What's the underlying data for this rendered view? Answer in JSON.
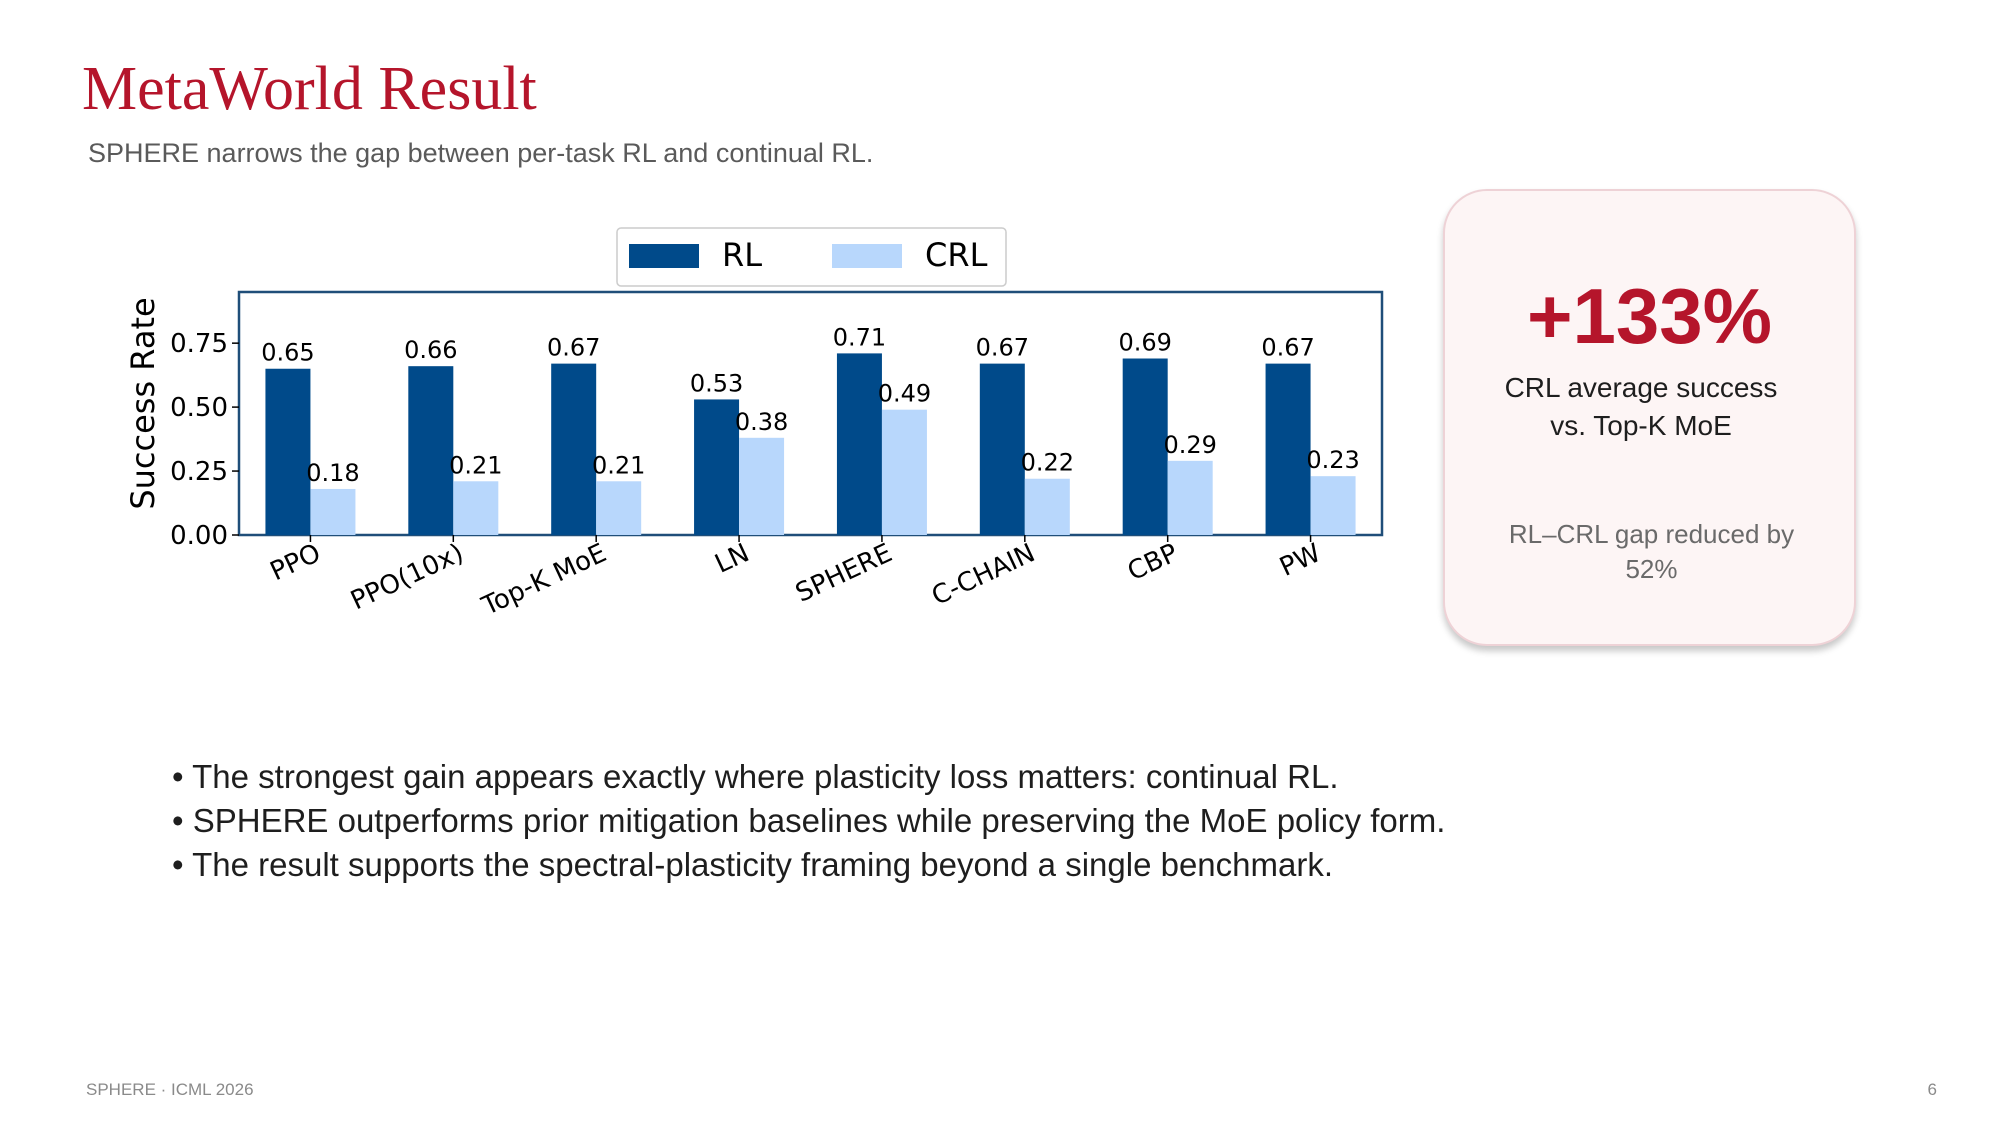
{
  "slide": {
    "title": "MetaWorld Result",
    "subtitle": "SPHERE narrows the gap between per-task RL and continual RL.",
    "footer": "SPHERE · ICML 2026",
    "page_number": "6"
  },
  "card": {
    "metric": "+133%",
    "caption": "CRL average success vs. Top-K MoE",
    "note": "RL–CRL gap reduced by 52%"
  },
  "bullets": [
    "• The strongest gain appears exactly where plasticity loss matters: continual RL.",
    "• SPHERE outperforms prior mitigation baselines while preserving the MoE policy form.",
    "• The result supports the spectral-plasticity framing beyond a single benchmark."
  ],
  "colors": {
    "title": "#b5152b",
    "rl": "#004a8a",
    "crl": "#b8d7fc",
    "axes": "#1f4e79"
  },
  "chart_data": {
    "type": "bar",
    "categories": [
      "PPO",
      "PPO(10x)",
      "Top-K MoE",
      "LN",
      "SPHERE",
      "C-CHAIN",
      "CBP",
      "PW"
    ],
    "series": [
      {
        "name": "RL",
        "values": [
          0.65,
          0.66,
          0.67,
          0.53,
          0.71,
          0.67,
          0.69,
          0.67
        ],
        "labels": [
          "0.65",
          "0.66",
          "0.67",
          "0.53",
          "0.71",
          "0.67",
          "0.69",
          "0.67"
        ]
      },
      {
        "name": "CRL",
        "values": [
          0.18,
          0.21,
          0.21,
          0.38,
          0.49,
          0.22,
          0.29,
          0.23
        ],
        "labels": [
          "0.18",
          "0.21",
          "0.21",
          "0.38",
          "0.49",
          "0.22",
          "0.29",
          "0.23"
        ]
      }
    ],
    "title": "",
    "xlabel": "",
    "ylabel": "Success Rate",
    "ylim": [
      0,
      0.95
    ],
    "yticks": [
      0,
      0.25,
      0.5,
      0.75
    ],
    "ytick_labels": [
      "0.00",
      "0.25",
      "0.50",
      "0.75"
    ],
    "grid": false,
    "legend": "top-center"
  }
}
